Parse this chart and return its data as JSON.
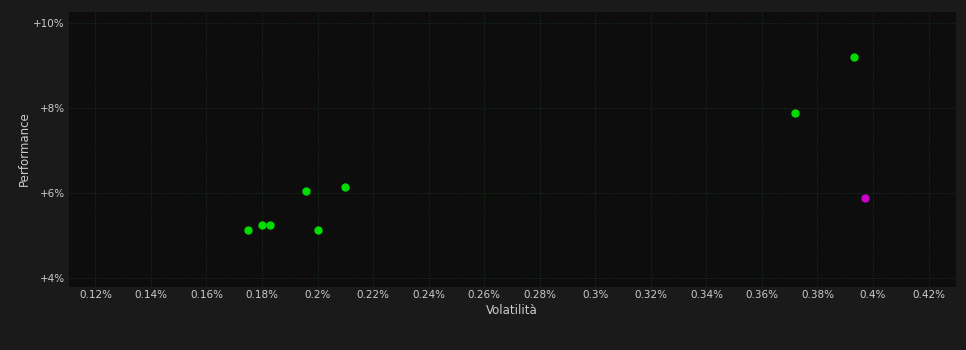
{
  "background_color": "#1a1a1a",
  "plot_bg_color": "#0d0d0d",
  "grid_color": "#1e3a1e",
  "xlabel": "Volatilità",
  "ylabel": "Performance",
  "xlim": [
    0.11,
    0.43
  ],
  "ylim": [
    0.038,
    0.103
  ],
  "xticks": [
    0.12,
    0.14,
    0.16,
    0.18,
    0.2,
    0.22,
    0.24,
    0.26,
    0.28,
    0.3,
    0.32,
    0.34,
    0.36,
    0.38,
    0.4,
    0.42
  ],
  "yticks": [
    0.04,
    0.06,
    0.08,
    0.1
  ],
  "ytick_labels": [
    "+4%",
    "+6%",
    "+8%",
    "+10%"
  ],
  "xtick_labels": [
    "0.12%",
    "0.14%",
    "0.16%",
    "0.18%",
    "0.2%",
    "0.22%",
    "0.24%",
    "0.26%",
    "0.28%",
    "0.3%",
    "0.32%",
    "0.34%",
    "0.36%",
    "0.38%",
    "0.4%",
    "0.42%"
  ],
  "green_points": [
    [
      0.175,
      0.0515
    ],
    [
      0.18,
      0.0525
    ],
    [
      0.183,
      0.0525
    ],
    [
      0.2,
      0.0515
    ],
    [
      0.196,
      0.0605
    ],
    [
      0.21,
      0.0615
    ],
    [
      0.372,
      0.079
    ],
    [
      0.393,
      0.092
    ]
  ],
  "magenta_points": [
    [
      0.397,
      0.059
    ]
  ],
  "green_color": "#00dd00",
  "magenta_color": "#cc00cc",
  "marker_size": 5,
  "text_color": "#cccccc",
  "tick_fontsize": 7.5,
  "label_fontsize": 8.5
}
